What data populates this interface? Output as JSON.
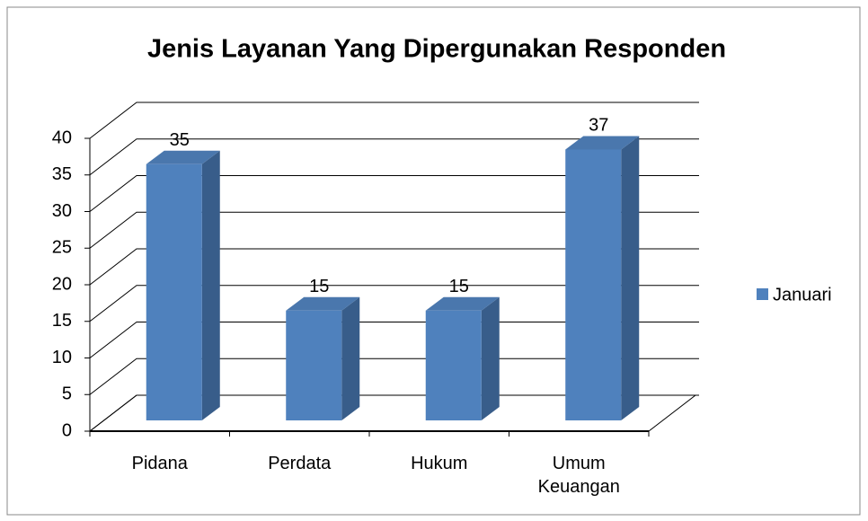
{
  "chart_data": {
    "type": "bar3d",
    "title": "Jenis Layanan Yang Dipergunakan Responden",
    "categories": [
      "Pidana",
      "Perdata",
      "Hukum",
      "Umum Keuangan"
    ],
    "series": [
      {
        "name": "Januari",
        "color": "#4f81bd",
        "values": [
          35,
          15,
          15,
          37
        ]
      }
    ],
    "ylim": [
      0,
      40
    ],
    "yticks": [
      0,
      5,
      10,
      15,
      20,
      25,
      30,
      35,
      40
    ],
    "grid": true,
    "legend": "right"
  }
}
